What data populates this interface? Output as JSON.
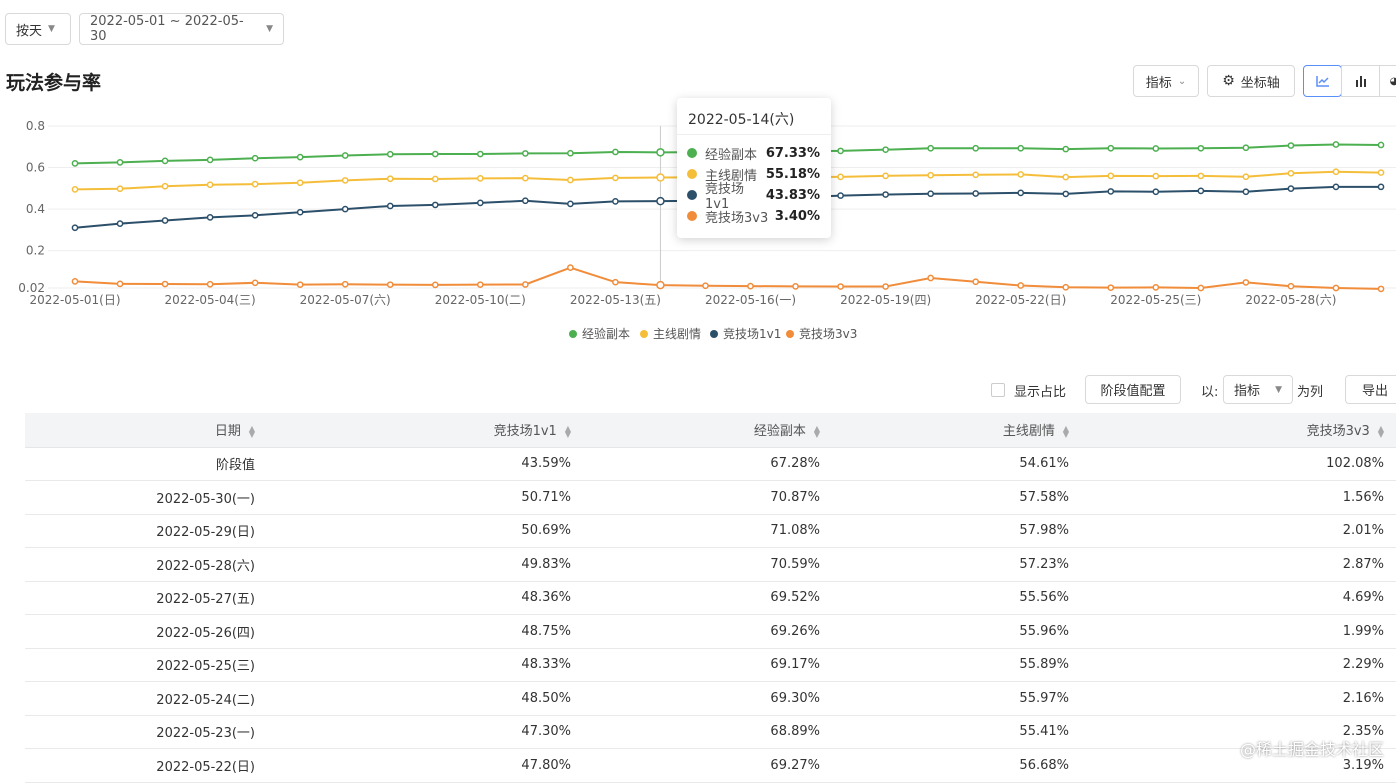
{
  "filters": {
    "granularity": "按天",
    "date_range": "2022-05-01 ~ 2022-05-30"
  },
  "page_title": "玩法参与率",
  "toolbar": {
    "metric_label": "指标",
    "axis_label": "坐标轴"
  },
  "tooltip": {
    "date": "2022-05-14(六)",
    "rows": [
      {
        "name": "经验副本",
        "value": "67.33%",
        "color": "#4caf50"
      },
      {
        "name": "主线剧情",
        "value": "55.18%",
        "color": "#f5be3a"
      },
      {
        "name": "竞技场1v1",
        "value": "43.83%",
        "color": "#2c4f6a"
      },
      {
        "name": "竞技场3v3",
        "value": "3.40%",
        "color": "#f08c3a"
      }
    ]
  },
  "chart_data": {
    "type": "line",
    "x": [
      "2022-05-01",
      "2022-05-02",
      "2022-05-03",
      "2022-05-04",
      "2022-05-05",
      "2022-05-06",
      "2022-05-07",
      "2022-05-08",
      "2022-05-09",
      "2022-05-10",
      "2022-05-11",
      "2022-05-12",
      "2022-05-13",
      "2022-05-14",
      "2022-05-15",
      "2022-05-16",
      "2022-05-17",
      "2022-05-18",
      "2022-05-19",
      "2022-05-20",
      "2022-05-21",
      "2022-05-22",
      "2022-05-23",
      "2022-05-24",
      "2022-05-25",
      "2022-05-26",
      "2022-05-27",
      "2022-05-28",
      "2022-05-29",
      "2022-05-30"
    ],
    "xtick_labels": [
      "2022-05-01(日)",
      "2022-05-04(三)",
      "2022-05-07(六)",
      "2022-05-10(二)",
      "2022-05-13(五)",
      "2022-05-16(一)",
      "2022-05-19(四)",
      "2022-05-22(日)",
      "2022-05-25(三)",
      "2022-05-28(六)"
    ],
    "ytick_labels": [
      "0.8",
      "0.6",
      "0.4",
      "0.2",
      "0.02"
    ],
    "ylim": [
      0.02,
      0.8
    ],
    "legend_position": "bottom",
    "series": [
      {
        "name": "经验副本",
        "color": "#4caf50",
        "values": [
          0.62,
          0.625,
          0.632,
          0.637,
          0.645,
          0.65,
          0.658,
          0.664,
          0.665,
          0.665,
          0.668,
          0.669,
          0.675,
          0.6733,
          0.674,
          0.676,
          0.678,
          0.68,
          0.686,
          0.693,
          0.693,
          0.6927,
          0.6889,
          0.693,
          0.6917,
          0.6926,
          0.6952,
          0.7059,
          0.7108,
          0.7087
        ]
      },
      {
        "name": "主线剧情",
        "color": "#f5be3a",
        "values": [
          0.495,
          0.498,
          0.51,
          0.517,
          0.52,
          0.527,
          0.538,
          0.546,
          0.545,
          0.548,
          0.549,
          0.54,
          0.55,
          0.5518,
          0.553,
          0.553,
          0.555,
          0.555,
          0.56,
          0.563,
          0.565,
          0.5668,
          0.5541,
          0.5597,
          0.5589,
          0.5596,
          0.5556,
          0.5723,
          0.5798,
          0.5758
        ]
      },
      {
        "name": "竞技场1v1",
        "color": "#2c4f6a",
        "values": [
          0.31,
          0.33,
          0.345,
          0.36,
          0.37,
          0.385,
          0.4,
          0.415,
          0.42,
          0.43,
          0.44,
          0.425,
          0.437,
          0.4383,
          0.44,
          0.445,
          0.456,
          0.465,
          0.47,
          0.474,
          0.475,
          0.478,
          0.473,
          0.485,
          0.4833,
          0.4875,
          0.4836,
          0.4983,
          0.5069,
          0.5071
        ]
      },
      {
        "name": "竞技场3v3",
        "color": "#f08c3a",
        "values": [
          0.052,
          0.04,
          0.039,
          0.038,
          0.045,
          0.036,
          0.038,
          0.036,
          0.035,
          0.036,
          0.037,
          0.118,
          0.048,
          0.034,
          0.031,
          0.029,
          0.028,
          0.027,
          0.027,
          0.068,
          0.05,
          0.0319,
          0.0235,
          0.0216,
          0.0229,
          0.0199,
          0.0469,
          0.0287,
          0.0201,
          0.0156
        ]
      }
    ]
  },
  "table_toolbar": {
    "show_ratio": "显示占比",
    "stage_config": "阶段值配置",
    "by_label": "以:",
    "by_select": "指标",
    "as_column": "为列",
    "export": "导出"
  },
  "table": {
    "headers": [
      "日期",
      "竞技场1v1",
      "经验副本",
      "主线剧情",
      "竞技场3v3"
    ],
    "rows": [
      [
        "阶段值",
        "43.59%",
        "67.28%",
        "54.61%",
        "102.08%"
      ],
      [
        "2022-05-30(一)",
        "50.71%",
        "70.87%",
        "57.58%",
        "1.56%"
      ],
      [
        "2022-05-29(日)",
        "50.69%",
        "71.08%",
        "57.98%",
        "2.01%"
      ],
      [
        "2022-05-28(六)",
        "49.83%",
        "70.59%",
        "57.23%",
        "2.87%"
      ],
      [
        "2022-05-27(五)",
        "48.36%",
        "69.52%",
        "55.56%",
        "4.69%"
      ],
      [
        "2022-05-26(四)",
        "48.75%",
        "69.26%",
        "55.96%",
        "1.99%"
      ],
      [
        "2022-05-25(三)",
        "48.33%",
        "69.17%",
        "55.89%",
        "2.29%"
      ],
      [
        "2022-05-24(二)",
        "48.50%",
        "69.30%",
        "55.97%",
        "2.16%"
      ],
      [
        "2022-05-23(一)",
        "47.30%",
        "68.89%",
        "55.41%",
        "2.35%"
      ],
      [
        "2022-05-22(日)",
        "47.80%",
        "69.27%",
        "56.68%",
        "3.19%"
      ]
    ]
  },
  "watermark": "@稀土掘金技术社区"
}
